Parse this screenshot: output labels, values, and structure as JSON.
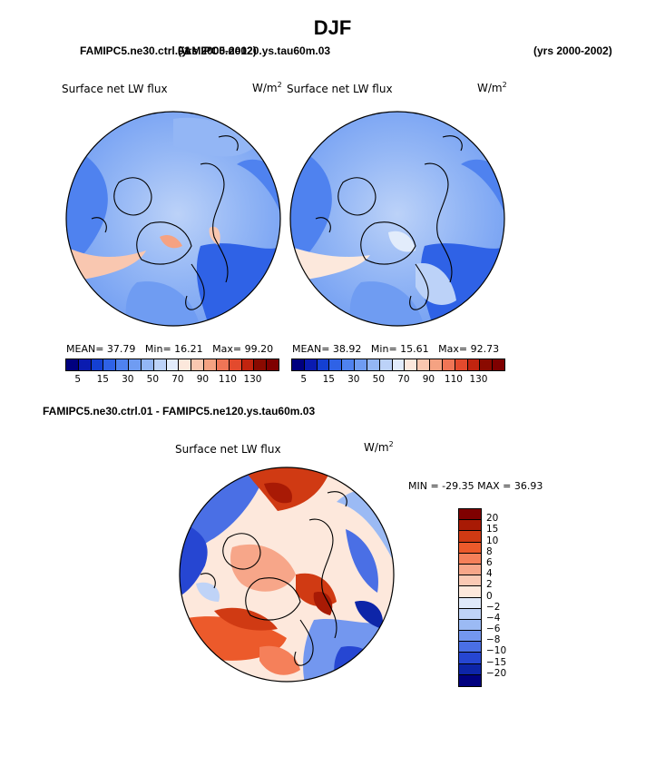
{
  "figure": {
    "title": "DJF",
    "case_a_title": "FAMIPC5.ne30.ctrl.01",
    "case_a_years": "(yrs 2000-2002)",
    "case_b_title": "FAMIPC5.ne120.ys.tau60m.03",
    "case_b_years": "(yrs 2000-2002)",
    "diff_title": "FAMIPC5.ne30.ctrl.01 - FAMIPC5.ne120.ys.tau60m.03"
  },
  "chart_data": [
    {
      "type": "heatmap",
      "name": "panel-left",
      "projection": "north-polar-stereographic",
      "title": "Surface net LW flux",
      "units": "W/m",
      "units_sup": "2",
      "mean_label": "MEAN=",
      "mean": "37.79",
      "min_label": "Min=",
      "min": "16.21",
      "max_label": "Max=",
      "max": "99.20",
      "contour_levels": [
        5,
        10,
        15,
        20,
        25,
        30,
        40,
        50,
        60,
        70,
        80,
        90,
        100,
        110,
        120,
        130
      ],
      "colorbar_ticks": [
        "5",
        "15",
        "30",
        "50",
        "70",
        "90",
        "110",
        "130"
      ]
    },
    {
      "type": "heatmap",
      "name": "panel-right",
      "projection": "north-polar-stereographic",
      "title": "Surface net LW flux",
      "units": "W/m",
      "units_sup": "2",
      "mean_label": "MEAN=",
      "mean": "38.92",
      "min_label": "Min=",
      "min": "15.61",
      "max_label": "Max=",
      "max": "92.73",
      "contour_levels": [
        5,
        10,
        15,
        20,
        25,
        30,
        40,
        50,
        60,
        70,
        80,
        90,
        100,
        110,
        120,
        130
      ],
      "colorbar_ticks": [
        "5",
        "15",
        "30",
        "50",
        "70",
        "90",
        "110",
        "130"
      ]
    },
    {
      "type": "heatmap",
      "name": "panel-diff",
      "projection": "north-polar-stereographic",
      "title": "Surface net LW flux",
      "units": "W/m",
      "units_sup": "2",
      "minmax_text": "MIN = -29.35 MAX =  36.93",
      "contour_levels": [
        20,
        15,
        10,
        8,
        6,
        4,
        2,
        0,
        -2,
        -4,
        -6,
        -8,
        -10,
        -15,
        -20
      ],
      "colorbar_ticks": [
        "20",
        "15",
        "10",
        "8",
        "6",
        "4",
        "2",
        "0",
        "−2",
        "−4",
        "−6",
        "−8",
        "−10",
        "−15",
        "−20"
      ]
    }
  ],
  "colors": {
    "abs_scale": [
      "#00007f",
      "#0a1bb0",
      "#1440d2",
      "#2f62e6",
      "#4f82ef",
      "#6f9cf2",
      "#93b6f5",
      "#bcd2f8",
      "#e2ecfb",
      "#fce8dc",
      "#f9c7b0",
      "#f5a282",
      "#ef7556",
      "#e34a2d",
      "#c1240f",
      "#8a0a00",
      "#7f0000"
    ],
    "diff_scale": [
      "#7f0000",
      "#a81a05",
      "#d03a13",
      "#ec5a2b",
      "#f5805a",
      "#f7a689",
      "#fac9b4",
      "#fde8dc",
      "#dfe9fa",
      "#bfd3f7",
      "#9bbaf4",
      "#7397ef",
      "#4a6fe5",
      "#2646d2",
      "#0d25a8",
      "#00007f"
    ]
  }
}
